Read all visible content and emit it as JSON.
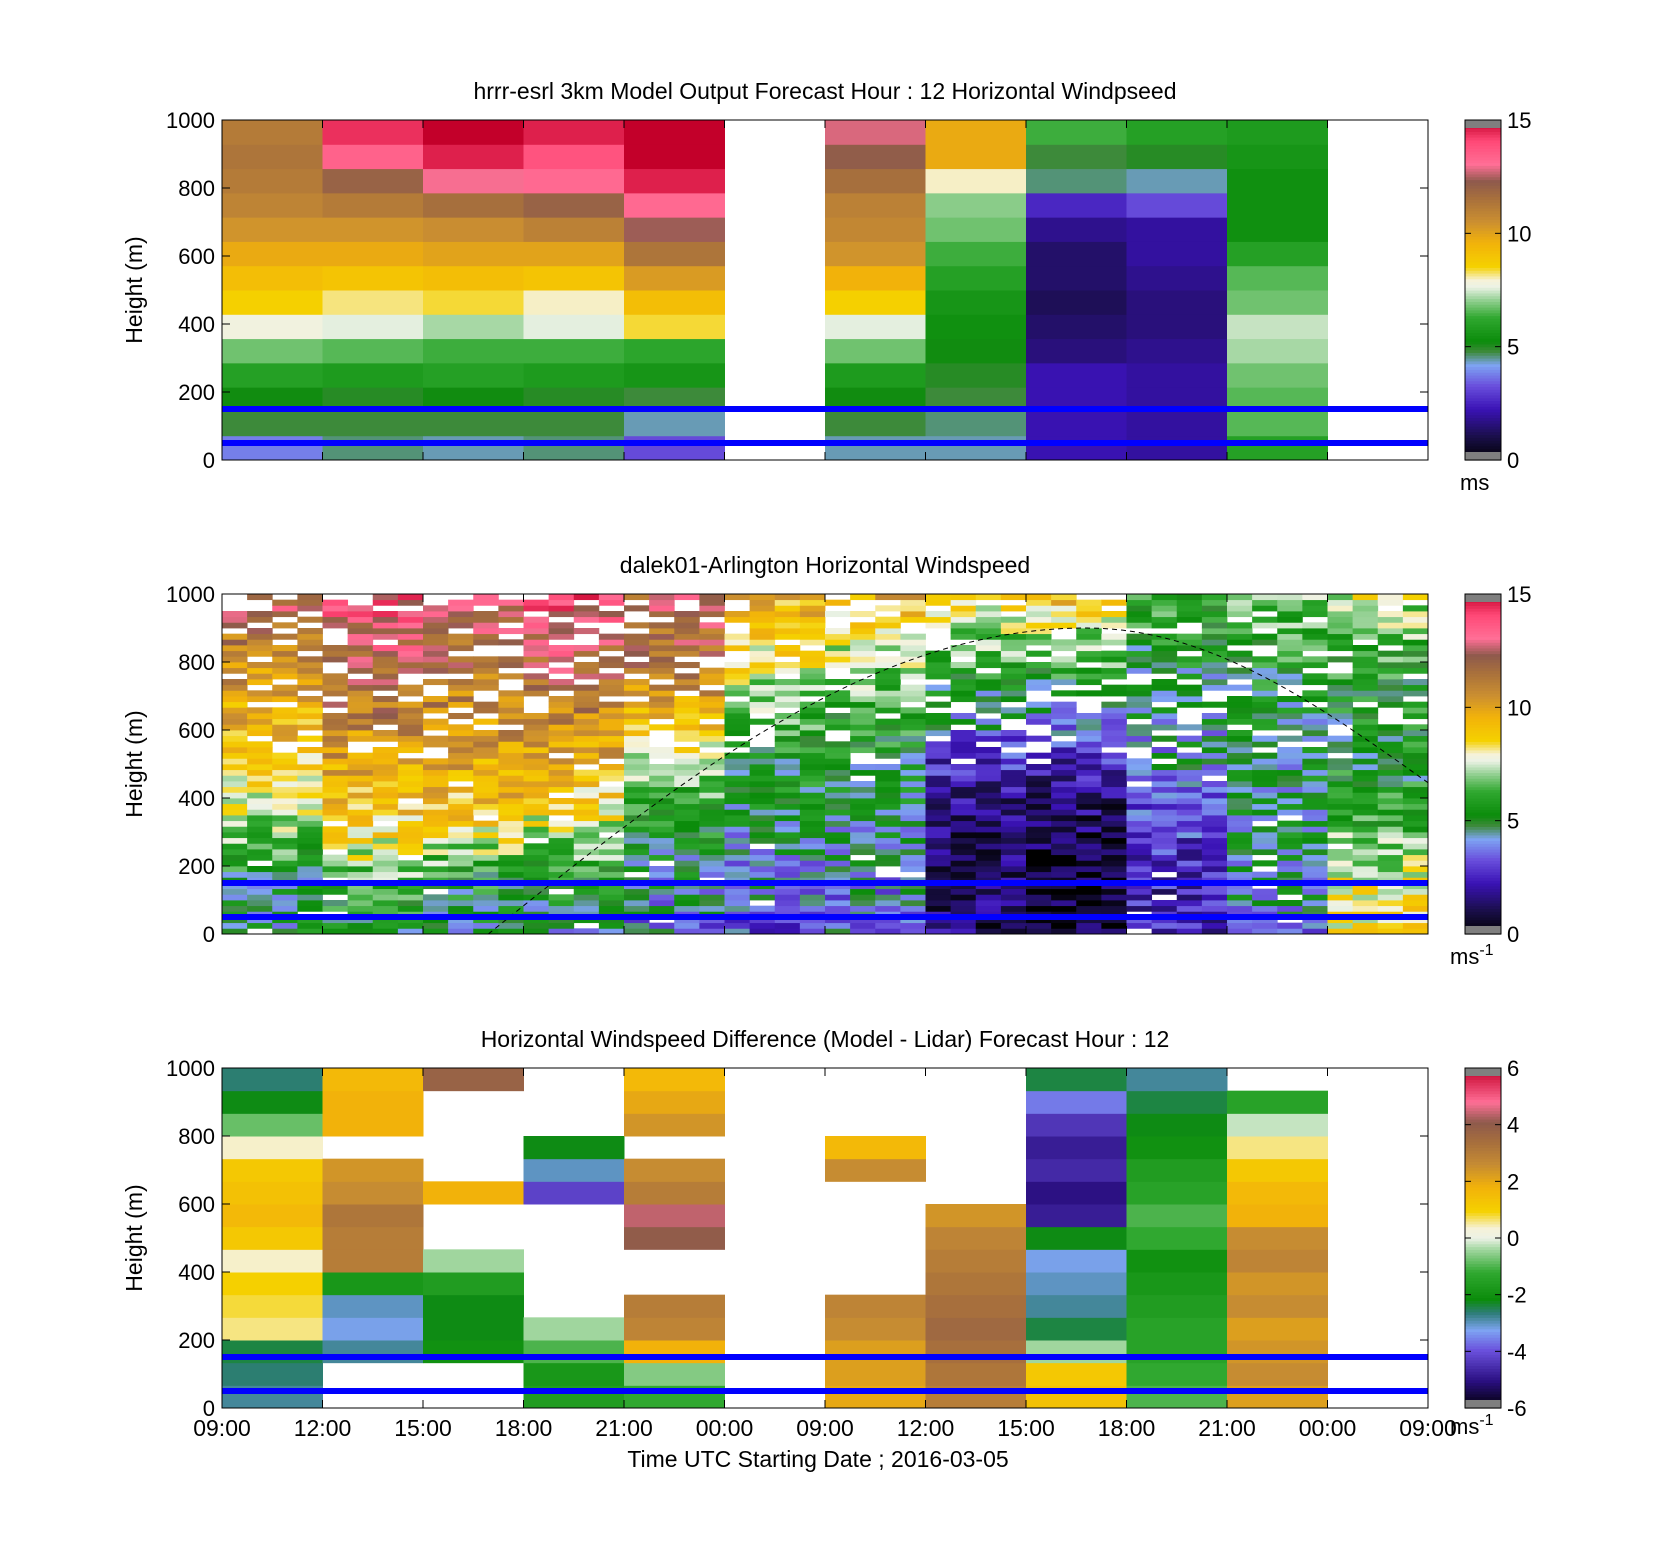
{
  "figure": {
    "xlabel": "Time UTC  Starting Date ; 2016-03-05",
    "x_tick_labels": [
      "09:00",
      "12:00",
      "15:00",
      "18:00",
      "21:00",
      "00:00",
      "09:00",
      "12:00",
      "15:00",
      "18:00",
      "21:00",
      "00:00",
      "09:00"
    ],
    "reference_lines_height_m": [
      150,
      50
    ],
    "reference_line_color": "#0000ff"
  },
  "chart_data": [
    {
      "type": "heatmap",
      "title": "hrrr-esrl 3km Model Output   Forecast Hour : 12 Horizontal Windpseed",
      "ylabel": "Height (m)",
      "ylim": [
        0,
        1000
      ],
      "y_ticks": [
        0,
        200,
        400,
        600,
        800,
        1000
      ],
      "colorbar": {
        "min": 0,
        "max": 15,
        "ticks": [
          0,
          5,
          10,
          15
        ],
        "unit": "ms"
      },
      "columns": [
        {
          "x_label": "09:00",
          "values": [
            3.8,
            4.8,
            5.2,
            6.0,
            6.8,
            7.8,
            8.6,
            9.2,
            9.8,
            10.4,
            10.9,
            11.2,
            11.4,
            11.2
          ]
        },
        {
          "x_label": "12:00",
          "values": [
            4.6,
            4.8,
            5.0,
            5.8,
            6.6,
            7.6,
            8.2,
            9.0,
            9.8,
            10.4,
            11.2,
            12.0,
            13.4,
            14.4
          ]
        },
        {
          "x_label": "15:00",
          "values": [
            4.4,
            4.8,
            5.2,
            6.0,
            6.4,
            7.2,
            8.4,
            9.2,
            10.0,
            10.6,
            11.6,
            13.0,
            14.6,
            15.0
          ]
        },
        {
          "x_label": "18:00",
          "values": [
            4.6,
            4.8,
            5.0,
            5.8,
            6.4,
            7.6,
            8.0,
            9.0,
            10.0,
            11.0,
            12.0,
            13.2,
            13.8,
            14.6
          ]
        },
        {
          "x_label": "21:00",
          "values": [
            3.2,
            4.4,
            4.8,
            5.6,
            6.2,
            8.4,
            9.2,
            10.2,
            11.4,
            12.4,
            13.2,
            14.6,
            15.0,
            15.0
          ]
        },
        {
          "x_label": "00:00",
          "values": []
        },
        {
          "x_label": "09:00",
          "values": [
            4.4,
            4.8,
            5.2,
            5.8,
            6.8,
            7.6,
            8.6,
            9.6,
            10.4,
            10.8,
            11.0,
            11.6,
            12.2,
            12.8
          ]
        },
        {
          "x_label": "12:00",
          "values": [
            4.4,
            4.6,
            4.8,
            5.0,
            5.2,
            5.4,
            5.6,
            6.0,
            6.4,
            6.8,
            7.0,
            8.0,
            9.8,
            9.8
          ]
        },
        {
          "x_label": "15:00",
          "values": [
            2.2,
            2.2,
            2.2,
            2.2,
            1.6,
            1.4,
            1.2,
            1.4,
            1.4,
            1.8,
            2.6,
            4.6,
            4.8,
            6.4
          ]
        },
        {
          "x_label": "18:00",
          "values": [
            2.0,
            2.0,
            2.0,
            2.0,
            1.8,
            1.6,
            1.6,
            1.8,
            2.0,
            2.0,
            3.2,
            4.4,
            5.0,
            6.0
          ]
        },
        {
          "x_label": "21:00",
          "values": [
            6.0,
            6.6,
            6.6,
            6.8,
            7.2,
            7.4,
            6.8,
            6.6,
            6.0,
            5.4,
            5.4,
            5.4,
            5.6,
            5.8
          ]
        },
        {
          "x_label": "00:00",
          "values": []
        }
      ]
    },
    {
      "type": "heatmap",
      "title": "dalek01-Arlington  Horizontal Windspeed",
      "ylabel": "Height (m)",
      "ylim": [
        0,
        1000
      ],
      "y_ticks": [
        0,
        200,
        400,
        600,
        800,
        1000
      ],
      "colorbar": {
        "min": 0,
        "max": 15,
        "ticks": [
          0,
          5,
          10,
          15
        ],
        "unit": "ms",
        "unit_exponent": "-1"
      },
      "hour_profiles": [
        {
          "x_label": "09:00",
          "values": [
            4.8,
            5.2,
            7.2,
            8.6,
            9.8,
            11.0,
            12.6
          ]
        },
        {
          "x_label": "12:00",
          "values": [
            5.0,
            6.6,
            8.8,
            10.0,
            11.2,
            12.4,
            13.8
          ]
        },
        {
          "x_label": "15:00",
          "values": [
            4.8,
            5.6,
            8.8,
            9.8,
            10.8,
            11.8,
            13.0
          ]
        },
        {
          "x_label": "18:00",
          "values": [
            4.6,
            5.8,
            7.8,
            9.6,
            11.0,
            12.4,
            13.6
          ]
        },
        {
          "x_label": "21:00",
          "values": [
            3.8,
            4.6,
            5.6,
            7.0,
            9.8,
            11.6,
            12.2
          ]
        },
        {
          "x_label": "00:00",
          "values": [
            3.2,
            4.0,
            4.8,
            5.4,
            6.8,
            8.4,
            9.6
          ]
        },
        {
          "x_label": "09:00",
          "values": [
            3.6,
            4.2,
            4.8,
            5.2,
            6.0,
            7.6,
            9.6
          ]
        },
        {
          "x_label": "12:00",
          "values": [
            1.4,
            1.2,
            1.6,
            2.6,
            4.8,
            6.4,
            8.4
          ]
        },
        {
          "x_label": "15:00",
          "values": [
            0.8,
            0.6,
            1.2,
            2.4,
            4.6,
            6.6,
            9.6
          ]
        },
        {
          "x_label": "18:00",
          "values": [
            2.4,
            2.4,
            3.2,
            4.2,
            4.8,
            5.2,
            6.4
          ]
        },
        {
          "x_label": "21:00",
          "values": [
            4.0,
            4.6,
            4.8,
            4.8,
            5.0,
            5.8,
            7.2
          ]
        },
        {
          "x_label": "00:00",
          "values": [
            8.4,
            7.8,
            6.2,
            5.2,
            5.4,
            6.2,
            7.6
          ]
        }
      ],
      "dashed_curve": {
        "peak_height_m": 900,
        "start_height_m": 0,
        "end_height_m": 445
      }
    },
    {
      "type": "heatmap",
      "title": "Horizontal Windspeed Difference (Model - Lidar) Forecast Hour : 12",
      "ylabel": "Height (m)",
      "ylim": [
        0,
        1000
      ],
      "y_ticks": [
        0,
        200,
        400,
        600,
        800,
        1000
      ],
      "colorbar": {
        "min": -6,
        "max": 6,
        "ticks": [
          -6,
          -4,
          -2,
          0,
          2,
          4,
          6
        ],
        "unit": "ms",
        "unit_exponent": "-1"
      },
      "columns": [
        {
          "x_label": "09:00",
          "values": [
            -2.8,
            -2.6,
            -2.4,
            0.6,
            0.8,
            1.0,
            0.4,
            1.2,
            1.6,
            1.4,
            1.2,
            0.4,
            -0.8,
            -2.2,
            -2.6
          ]
        },
        {
          "x_label": "12:00",
          "values": [
            null,
            null,
            -2.8,
            -3.2,
            -3.0,
            -1.8,
            3.0,
            3.0,
            3.2,
            2.6,
            2.4,
            null,
            1.8,
            1.8,
            1.6
          ]
        },
        {
          "x_label": "15:00",
          "values": [
            null,
            null,
            -2.0,
            -2.2,
            -2.2,
            -1.6,
            -0.4,
            null,
            null,
            1.8,
            null,
            null,
            null,
            null,
            3.8
          ]
        },
        {
          "x_label": "18:00",
          "values": [
            -1.6,
            -1.8,
            -1.0,
            -0.4,
            null,
            null,
            null,
            null,
            null,
            -4.2,
            -3.0,
            -2.2,
            null,
            null,
            null
          ]
        },
        {
          "x_label": "21:00",
          "values": [
            -1.2,
            -0.6,
            1.8,
            2.8,
            3.0,
            null,
            null,
            4.0,
            4.4,
            3.0,
            2.6,
            null,
            2.4,
            2.0,
            1.6
          ]
        },
        {
          "x_label": "00:00",
          "values": []
        },
        {
          "x_label": "09:00",
          "values": [
            2.0,
            2.2,
            2.2,
            2.6,
            2.8,
            null,
            null,
            null,
            null,
            null,
            2.6,
            1.6,
            null,
            null,
            null
          ]
        },
        {
          "x_label": "12:00",
          "values": [
            3.0,
            3.2,
            3.4,
            3.6,
            3.4,
            3.2,
            3.0,
            2.8,
            2.4,
            null,
            null,
            null,
            null,
            null,
            null
          ]
        },
        {
          "x_label": "15:00",
          "values": [
            1.4,
            1.2,
            -0.4,
            -2.4,
            -2.8,
            -3.0,
            -3.2,
            -2.2,
            -4.8,
            -5.0,
            -4.6,
            -4.8,
            -4.4,
            -3.6,
            -2.4
          ]
        },
        {
          "x_label": "18:00",
          "values": [
            -1.0,
            -1.2,
            -1.4,
            -1.4,
            -1.6,
            -1.8,
            -2.0,
            -1.2,
            -1.0,
            -1.4,
            -1.6,
            -2.0,
            -2.2,
            -2.4,
            -2.8
          ]
        },
        {
          "x_label": "21:00",
          "values": [
            2.2,
            2.6,
            2.4,
            2.2,
            2.6,
            2.4,
            2.8,
            2.6,
            1.8,
            1.6,
            1.2,
            0.6,
            -0.2,
            -1.4,
            null
          ]
        },
        {
          "x_label": "00:00",
          "values": []
        }
      ]
    }
  ]
}
